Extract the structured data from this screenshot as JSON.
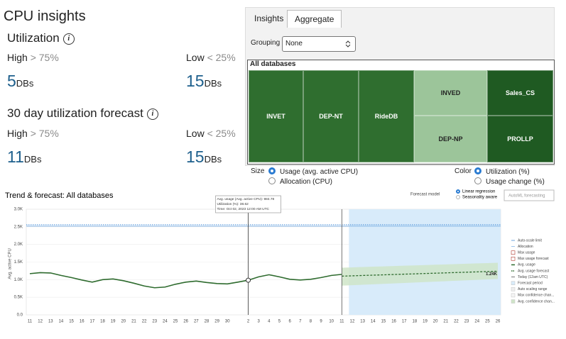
{
  "insights": {
    "title": "CPU insights",
    "utilization": {
      "label": "Utilization",
      "high_label": "High",
      "high_threshold": "> 75%",
      "low_label": "Low",
      "low_threshold": "< 25%",
      "high_count": 5,
      "high_unit": "DBs",
      "low_count": 15,
      "low_unit": "DBs"
    },
    "forecast": {
      "label": "30 day utilization forecast",
      "high_label": "High",
      "high_threshold": "> 75%",
      "low_label": "Low",
      "low_threshold": "< 25%",
      "high_count": 11,
      "high_unit": "DBs",
      "low_count": 15,
      "low_unit": "DBs"
    }
  },
  "aggregate": {
    "tabs": [
      "Insights",
      "Aggregate"
    ],
    "selected_tab": 1,
    "grouping_label": "Grouping",
    "grouping_value": "None",
    "treemap": {
      "title": "All databases",
      "cells": [
        {
          "label": "INVET",
          "color": "#2f6e2f"
        },
        {
          "label": "DEP-NT",
          "color": "#2f6e2f"
        },
        {
          "label": "RideDB",
          "color": "#2f6e2f"
        },
        {
          "label": "INVED",
          "color": "#9cc59a"
        },
        {
          "label": "DEP-NP",
          "color": "#9cc59a"
        },
        {
          "label": "Sales_CS",
          "color": "#1f5a22"
        },
        {
          "label": "PROLLP",
          "color": "#1f5a22"
        }
      ]
    },
    "size": {
      "label": "Size",
      "options": [
        "Usage (avg. active CPU)",
        "Allocation (CPU)"
      ],
      "selected": 0
    },
    "color": {
      "label": "Color",
      "options": [
        "Utilization (%)",
        "Usage change (%)"
      ],
      "selected": 0
    }
  },
  "chart_data": {
    "type": "line",
    "title": "Trend & forecast: All databases",
    "forecast_model": {
      "label": "Forecast model",
      "options": [
        "Linear regression",
        "Seasonality aware"
      ],
      "selected": 0
    },
    "automl_label": "AutoML forecasting",
    "y_label": "Avg. active CPU",
    "ylim": [
      0,
      3000
    ],
    "yticks": [
      {
        "value": 0,
        "label": "0.0"
      },
      {
        "value": 500,
        "label": "0.5K"
      },
      {
        "value": 1000,
        "label": "1.0K"
      },
      {
        "value": 1500,
        "label": "1.5K"
      },
      {
        "value": 2000,
        "label": "2.0K"
      },
      {
        "value": 2500,
        "label": "2.5K"
      },
      {
        "value": 3000,
        "label": "3.0K"
      }
    ],
    "grid": true,
    "categories": [
      "11",
      "12",
      "13",
      "14",
      "15",
      "16",
      "17",
      "18",
      "19",
      "20",
      "21",
      "22",
      "23",
      "24",
      "25",
      "26",
      "27",
      "28",
      "29",
      "30",
      null,
      "2",
      "3",
      "4",
      "5",
      "6",
      "7",
      "8",
      "9",
      "10",
      "11",
      "12",
      "13",
      "14",
      "15",
      "16",
      "17",
      "18",
      "19",
      "20",
      "21",
      "22",
      "23",
      "24",
      "25",
      "26"
    ],
    "series": [
      {
        "name": "Auto-scale limit",
        "color": "#4a8fd6",
        "style": "dotted",
        "value": 2560
      },
      {
        "name": "Allocation",
        "color": "#86b6e6",
        "style": "reference",
        "value": 2520
      },
      {
        "name": "Max usage",
        "color": "#b03a2e",
        "style": "box"
      },
      {
        "name": "Max usage forecast",
        "color": "#b03a2e",
        "style": "box"
      },
      {
        "name": "Avg. usage",
        "color": "#2e6b2e",
        "style": "line",
        "values": [
          1170,
          1200,
          1190,
          1120,
          1060,
          990,
          930,
          1000,
          1020,
          970,
          900,
          820,
          770,
          790,
          870,
          930,
          960,
          920,
          890,
          880,
          930,
          984.78,
          1080,
          1140,
          1080,
          1010,
          990,
          1010,
          1060,
          1120,
          1150,
          null,
          null,
          null,
          null,
          null,
          null,
          null,
          null,
          null,
          null,
          null,
          null,
          null,
          null,
          null
        ]
      },
      {
        "name": "Avg. usage forecast",
        "color": "#2e6b2e",
        "style": "dashed",
        "values": [
          null,
          null,
          null,
          null,
          null,
          null,
          null,
          null,
          null,
          null,
          null,
          null,
          null,
          null,
          null,
          null,
          null,
          null,
          null,
          null,
          null,
          null,
          null,
          null,
          null,
          null,
          null,
          null,
          null,
          null,
          1100,
          1109,
          1119,
          1128,
          1137,
          1147,
          1156,
          1165,
          1175,
          1184,
          1193,
          1203,
          1212,
          1221,
          1231,
          1240
        ],
        "value_labels": [
          null,
          null,
          null,
          null,
          null,
          null,
          null,
          null,
          null,
          null,
          null,
          null,
          null,
          null,
          null,
          null,
          null,
          null,
          null,
          null,
          null,
          null,
          null,
          null,
          null,
          null,
          null,
          null,
          null,
          null,
          null,
          null,
          null,
          null,
          null,
          null,
          null,
          null,
          null,
          null,
          null,
          null,
          null,
          null,
          null,
          "1.24K"
        ]
      },
      {
        "name": "Today (12am UTC)",
        "color": "#555555",
        "style": "today"
      },
      {
        "name": "Forecast period",
        "color": "#d8ebfa",
        "style": "period"
      },
      {
        "name": "Auto scaling range",
        "color": "#eeeeee",
        "style": "box"
      },
      {
        "name": "Max confidence chan...",
        "color": "#f4f4f4",
        "style": "box"
      },
      {
        "name": "Avg. confidence chan...",
        "color": "#cfe5c8",
        "style": "band",
        "lower": [
          null,
          null,
          null,
          null,
          null,
          null,
          null,
          null,
          null,
          null,
          null,
          null,
          null,
          null,
          null,
          null,
          null,
          null,
          null,
          null,
          null,
          null,
          null,
          null,
          null,
          null,
          null,
          null,
          null,
          null,
          830,
          843,
          855,
          868,
          881,
          893,
          906,
          919,
          931,
          944,
          957,
          969,
          982,
          995,
          1007,
          1020
        ],
        "upper": [
          null,
          null,
          null,
          null,
          null,
          null,
          null,
          null,
          null,
          null,
          null,
          null,
          null,
          null,
          null,
          null,
          null,
          null,
          null,
          null,
          null,
          null,
          null,
          null,
          null,
          null,
          null,
          null,
          null,
          null,
          1340,
          1349,
          1359,
          1368,
          1377,
          1387,
          1396,
          1405,
          1415,
          1424,
          1433,
          1443,
          1452,
          1461,
          1471,
          1480
        ]
      }
    ],
    "tooltip": {
      "usage_label": "Avg. usage (Avg. active CPU):",
      "usage": 984.78,
      "utilization_label": "Utilization (%):",
      "utilization": 38.62,
      "time_label": "Time:",
      "time": "Oct 02, 2023 12:00 AM UTC"
    }
  }
}
